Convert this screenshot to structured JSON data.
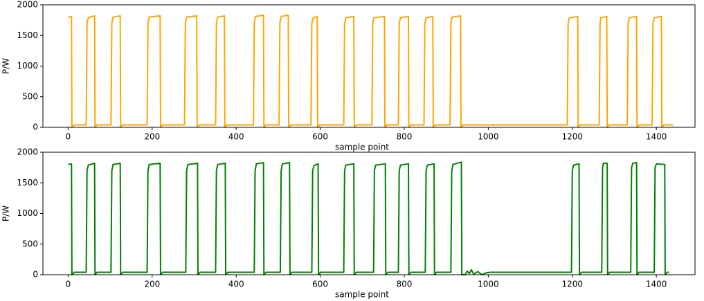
{
  "chart_data": [
    {
      "type": "line",
      "xlabel": "sample point",
      "ylabel": "P/W",
      "color": "#ffa500",
      "xlim": [
        -60,
        1492
      ],
      "ylim": [
        0,
        2000
      ],
      "xticks": [
        0,
        200,
        400,
        600,
        800,
        1000,
        1200,
        1400
      ],
      "yticks": [
        0,
        500,
        1000,
        1500,
        2000
      ],
      "x": [
        0,
        8,
        9,
        15,
        43,
        45,
        48,
        63,
        64,
        69,
        102,
        104,
        107,
        124,
        125,
        130,
        188,
        190,
        193,
        219,
        220,
        225,
        277,
        279,
        282,
        306,
        307,
        312,
        351,
        353,
        356,
        372,
        373,
        378,
        441,
        443,
        446,
        465,
        466,
        471,
        502,
        504,
        507,
        524,
        525,
        530,
        578,
        580,
        583,
        593,
        594,
        599,
        656,
        658,
        661,
        680,
        681,
        686,
        723,
        725,
        728,
        753,
        754,
        759,
        786,
        788,
        791,
        810,
        811,
        816,
        847,
        849,
        852,
        868,
        869,
        874,
        909,
        911,
        914,
        934,
        935,
        940,
        1188,
        1190,
        1193,
        1213,
        1214,
        1219,
        1264,
        1266,
        1268,
        1282,
        1283,
        1288,
        1331,
        1333,
        1336,
        1353,
        1354,
        1359,
        1390,
        1392,
        1395,
        1412,
        1413,
        1418,
        1440
      ],
      "values": [
        1800,
        1810,
        0,
        40,
        40,
        1700,
        1790,
        1820,
        0,
        40,
        40,
        1700,
        1800,
        1820,
        0,
        40,
        40,
        1700,
        1800,
        1820,
        0,
        40,
        40,
        1700,
        1800,
        1820,
        0,
        40,
        40,
        1700,
        1800,
        1820,
        0,
        40,
        40,
        1700,
        1810,
        1830,
        0,
        40,
        40,
        1700,
        1810,
        1830,
        0,
        40,
        40,
        1700,
        1780,
        1810,
        0,
        40,
        40,
        1700,
        1790,
        1810,
        0,
        40,
        40,
        1700,
        1790,
        1810,
        0,
        40,
        40,
        1700,
        1790,
        1810,
        0,
        40,
        40,
        1700,
        1790,
        1810,
        0,
        40,
        40,
        1700,
        1800,
        1820,
        0,
        40,
        40,
        1700,
        1790,
        1810,
        0,
        40,
        40,
        1700,
        1790,
        1810,
        0,
        40,
        40,
        1700,
        1790,
        1810,
        0,
        40,
        40,
        1700,
        1790,
        1810,
        0,
        40,
        40
      ]
    },
    {
      "type": "line",
      "xlabel": "sample point",
      "ylabel": "P/W",
      "color": "#008000",
      "xlim": [
        -60,
        1492
      ],
      "ylim": [
        0,
        2000
      ],
      "xticks": [
        0,
        200,
        400,
        600,
        800,
        1000,
        1200,
        1400
      ],
      "yticks": [
        0,
        500,
        1000,
        1500,
        2000
      ],
      "x": [
        0,
        8,
        9,
        15,
        43,
        45,
        48,
        63,
        64,
        69,
        102,
        104,
        107,
        124,
        125,
        130,
        188,
        190,
        193,
        219,
        220,
        225,
        280,
        282,
        285,
        308,
        309,
        314,
        351,
        353,
        356,
        374,
        375,
        380,
        443,
        445,
        448,
        465,
        466,
        471,
        505,
        507,
        510,
        527,
        528,
        533,
        580,
        582,
        585,
        595,
        596,
        601,
        656,
        658,
        661,
        680,
        681,
        686,
        727,
        729,
        732,
        755,
        756,
        761,
        786,
        788,
        791,
        810,
        811,
        816,
        850,
        852,
        855,
        871,
        872,
        877,
        911,
        913,
        916,
        936,
        937,
        945,
        950,
        955,
        960,
        965,
        975,
        985,
        995,
        1005,
        1198,
        1200,
        1203,
        1216,
        1217,
        1222,
        1270,
        1272,
        1274,
        1283,
        1284,
        1289,
        1339,
        1341,
        1344,
        1353,
        1354,
        1359,
        1395,
        1397,
        1400,
        1420,
        1421,
        1426,
        1430
      ],
      "values": [
        1800,
        1810,
        0,
        40,
        40,
        1700,
        1790,
        1820,
        0,
        40,
        40,
        1700,
        1800,
        1820,
        0,
        40,
        40,
        1700,
        1800,
        1820,
        0,
        40,
        40,
        1700,
        1800,
        1820,
        0,
        40,
        40,
        1700,
        1800,
        1820,
        0,
        40,
        40,
        1700,
        1810,
        1830,
        0,
        40,
        40,
        1700,
        1810,
        1830,
        0,
        40,
        40,
        1700,
        1780,
        1810,
        0,
        40,
        40,
        1700,
        1790,
        1810,
        0,
        40,
        40,
        1700,
        1790,
        1810,
        0,
        40,
        40,
        1700,
        1790,
        1810,
        0,
        40,
        40,
        1700,
        1790,
        1810,
        0,
        40,
        40,
        1700,
        1800,
        1840,
        0,
        0,
        60,
        20,
        80,
        10,
        50,
        0,
        30,
        40,
        40,
        1700,
        1790,
        1810,
        0,
        40,
        40,
        1750,
        1820,
        1820,
        0,
        40,
        40,
        1750,
        1820,
        1830,
        0,
        40,
        40,
        1750,
        1810,
        1800,
        0,
        40,
        40
      ]
    }
  ]
}
